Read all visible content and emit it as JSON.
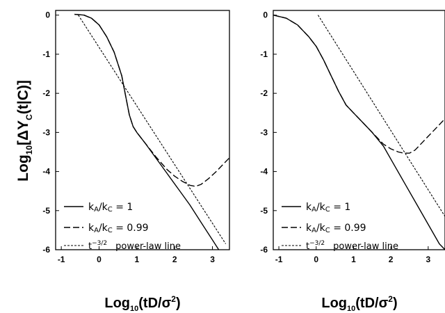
{
  "chart_data": [
    {
      "type": "line",
      "panel": "left",
      "xlabel": "Log10(tD/σ2)",
      "ylabel": "Log10[ΔYC(t|C)]",
      "xlim": [
        -1.15,
        3.45
      ],
      "ylim": [
        -6,
        0.12
      ],
      "xticks": [
        "-1",
        "0",
        "1",
        "2",
        "3"
      ],
      "yticks": [
        "0",
        "-1",
        "-2",
        "-3",
        "-4",
        "-5",
        "-6"
      ],
      "grid": false,
      "legend_position": "bottom-left",
      "series": [
        {
          "name": "kA/kC = 1",
          "style": "solid",
          "x": [
            -0.65,
            -0.4,
            -0.2,
            0.0,
            0.2,
            0.4,
            0.6,
            0.7,
            0.8,
            0.9,
            1.0,
            1.2,
            1.5,
            1.8,
            2.1,
            2.4,
            2.7,
            3.0,
            3.3
          ],
          "y": [
            0.02,
            0.0,
            -0.08,
            -0.25,
            -0.55,
            -0.95,
            -1.55,
            -2.05,
            -2.55,
            -2.85,
            -3.0,
            -3.25,
            -3.65,
            -4.05,
            -4.45,
            -4.85,
            -5.3,
            -5.75,
            -6.2
          ]
        },
        {
          "name": "kA/kC = 0.99",
          "style": "dashed",
          "x": [
            -0.65,
            -0.4,
            -0.2,
            0.0,
            0.2,
            0.4,
            0.6,
            0.7,
            0.8,
            0.9,
            1.0,
            1.2,
            1.5,
            1.8,
            2.0,
            2.2,
            2.4,
            2.55,
            2.7,
            2.9,
            3.1,
            3.3,
            3.45
          ],
          "y": [
            0.02,
            0.0,
            -0.08,
            -0.25,
            -0.55,
            -0.95,
            -1.55,
            -2.05,
            -2.55,
            -2.85,
            -3.0,
            -3.25,
            -3.62,
            -3.95,
            -4.12,
            -4.25,
            -4.35,
            -4.38,
            -4.33,
            -4.18,
            -4.0,
            -3.8,
            -3.65
          ]
        },
        {
          "name": "t-3/2 power-law line",
          "style": "dotted",
          "x": [
            -0.55,
            3.35
          ],
          "y": [
            0.0,
            -5.85
          ]
        }
      ]
    },
    {
      "type": "line",
      "panel": "right",
      "xlabel": "Log10(tD/σ2)",
      "xlim": [
        -1.15,
        3.45
      ],
      "ylim": [
        -6,
        0.12
      ],
      "xticks": [
        "-1",
        "0",
        "1",
        "2",
        "3"
      ],
      "yticks": [
        "0",
        "-1",
        "-2",
        "-3",
        "-4",
        "-5",
        "-6"
      ],
      "grid": false,
      "legend_position": "bottom-left",
      "series": [
        {
          "name": "kA/kC = 1",
          "style": "solid",
          "x": [
            -1.15,
            -0.8,
            -0.5,
            -0.2,
            0.0,
            0.2,
            0.4,
            0.6,
            0.8,
            1.0,
            1.2,
            1.5,
            1.8,
            2.1,
            2.4,
            2.7,
            3.0,
            3.3,
            3.45
          ],
          "y": [
            0.0,
            -0.08,
            -0.25,
            -0.55,
            -0.8,
            -1.15,
            -1.55,
            -1.95,
            -2.3,
            -2.5,
            -2.7,
            -3.0,
            -3.35,
            -3.85,
            -4.35,
            -4.85,
            -5.35,
            -5.85,
            -6.0
          ]
        },
        {
          "name": "kA/kC = 0.99",
          "style": "dashed",
          "x": [
            -1.15,
            -0.8,
            -0.5,
            -0.2,
            0.0,
            0.2,
            0.4,
            0.6,
            0.8,
            1.0,
            1.2,
            1.5,
            1.8,
            2.0,
            2.2,
            2.35,
            2.5,
            2.65,
            2.8,
            3.0,
            3.2,
            3.45
          ],
          "y": [
            0.0,
            -0.08,
            -0.25,
            -0.55,
            -0.8,
            -1.15,
            -1.55,
            -1.95,
            -2.3,
            -2.5,
            -2.7,
            -3.0,
            -3.3,
            -3.42,
            -3.5,
            -3.53,
            -3.53,
            -3.45,
            -3.3,
            -3.1,
            -2.9,
            -2.65
          ]
        },
        {
          "name": "t-3/2 power-law line",
          "style": "dotted",
          "x": [
            0.05,
            3.45
          ],
          "y": [
            0.0,
            -5.15
          ]
        }
      ]
    }
  ],
  "legend": {
    "entries": [
      {
        "k": "k",
        "A": "A",
        "slash": "/k",
        "C": "C",
        "rest": " = 1"
      },
      {
        "k": "k",
        "A": "A",
        "slash": "/k",
        "C": "C",
        "rest": " = 0.99"
      },
      {
        "t": "t",
        "exp": "−3/2",
        "rest": "power-law line"
      }
    ]
  },
  "labels": {
    "log": "Log",
    "sub10": "10",
    "x_arg_open": "(tD/σ",
    "x_sup": "2",
    "x_arg_close": ")",
    "y_open": "[ΔY",
    "y_sub": "C",
    "y_close": "(t|C)]"
  }
}
